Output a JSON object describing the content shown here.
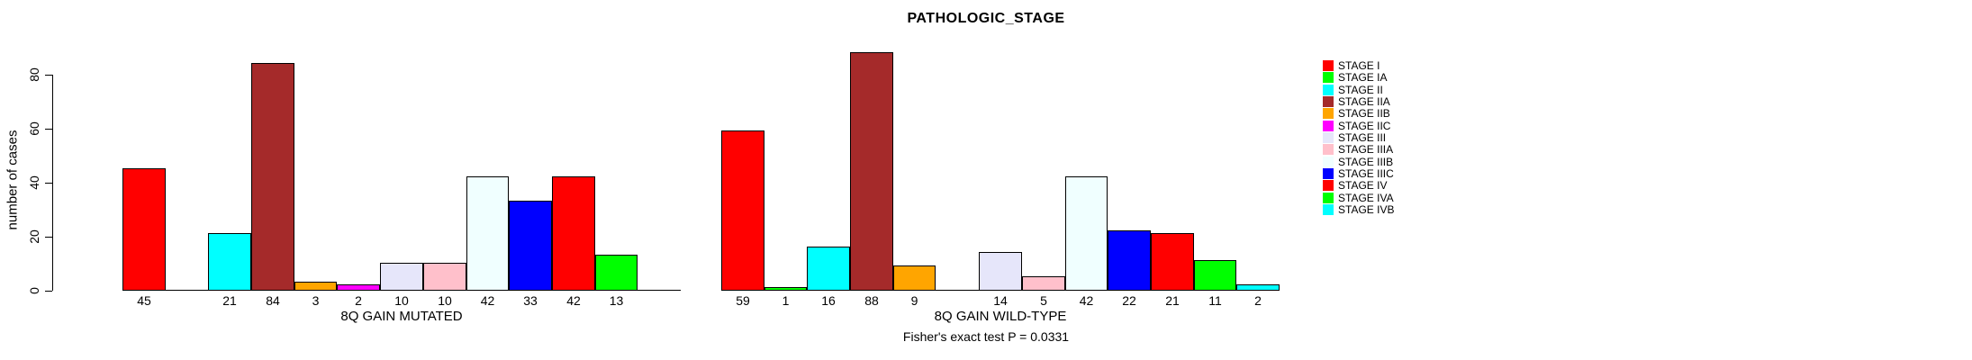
{
  "chart_data": {
    "type": "bar",
    "title": "PATHOLOGIC_STAGE",
    "ylabel": "number of cases",
    "ylim": [
      0,
      88
    ],
    "yticks": [
      0,
      20,
      40,
      60,
      80
    ],
    "grid": false,
    "legend_position": "right",
    "categories": [
      "STAGE I",
      "STAGE IA",
      "STAGE II",
      "STAGE IIA",
      "STAGE IIB",
      "STAGE IIC",
      "STAGE III",
      "STAGE IIIA",
      "STAGE IIIB",
      "STAGE IIIC",
      "STAGE IV",
      "STAGE IVA",
      "STAGE IVB"
    ],
    "palette": [
      "#FF0000",
      "#00FF00",
      "#00FFFF",
      "#A52A2A",
      "#FFA500",
      "#FF00FF",
      "#E6E6FA",
      "#FFC0CB",
      "#F0FFFF",
      "#0000FF",
      "#FF0000",
      "#00FF00",
      "#00FFFF"
    ],
    "panels": [
      {
        "xlabel": "8Q GAIN MUTATED",
        "values": [
          45,
          0,
          21,
          84,
          3,
          2,
          10,
          10,
          42,
          33,
          42,
          13,
          0
        ]
      },
      {
        "xlabel": "8Q GAIN WILD-TYPE",
        "values": [
          59,
          1,
          16,
          88,
          9,
          0,
          14,
          5,
          42,
          22,
          21,
          11,
          2
        ]
      }
    ],
    "bar_value_labels_shown_only_when_nonzero": true,
    "annotation": "Fisher's exact test P = 0.0331",
    "axis_color": "#000000",
    "background_color": "#FFFFFF"
  },
  "legend": {
    "entries": [
      {
        "label": "STAGE I",
        "color": "#FF0000"
      },
      {
        "label": "STAGE IA",
        "color": "#00FF00"
      },
      {
        "label": "STAGE II",
        "color": "#00FFFF"
      },
      {
        "label": "STAGE IIA",
        "color": "#A52A2A"
      },
      {
        "label": "STAGE IIB",
        "color": "#FFA500"
      },
      {
        "label": "STAGE IIC",
        "color": "#FF00FF"
      },
      {
        "label": "STAGE III",
        "color": "#E6E6FA"
      },
      {
        "label": "STAGE IIIA",
        "color": "#FFC0CB"
      },
      {
        "label": "STAGE IIIB",
        "color": "#F0FFFF"
      },
      {
        "label": "STAGE IIIC",
        "color": "#0000FF"
      },
      {
        "label": "STAGE IV",
        "color": "#FF0000"
      },
      {
        "label": "STAGE IVA",
        "color": "#00FF00"
      },
      {
        "label": "STAGE IVB",
        "color": "#00FFFF"
      }
    ]
  }
}
